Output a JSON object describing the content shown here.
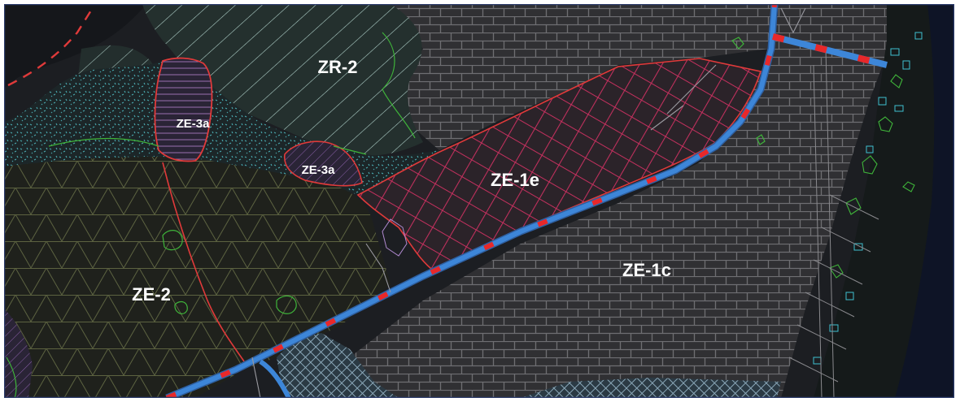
{
  "map": {
    "zone_labels": {
      "zr_2": "ZR-2",
      "ze_3a_upper": "ZE-3a",
      "ze_3a_lower": "ZE-3a",
      "ze_1e": "ZE-1e",
      "ze_1c": "ZE-1c",
      "ze_2": "ZE-2"
    },
    "colors": {
      "background": "#1c1e22",
      "brick_fill": "#303033",
      "brick_line": "#6e6e72",
      "diagonal_hatch": "#b9dcd4",
      "triangle_grid": "#5c6240",
      "crosshatch": "#c4305e",
      "dotted_fill": "#4aaab0",
      "boundary_red": "#e03a3a",
      "road_blue": "#3d86d8",
      "road_red_dash": "#e8282a",
      "vegetation_green": "#3fb43a",
      "frame": "#2a3a6a"
    }
  }
}
